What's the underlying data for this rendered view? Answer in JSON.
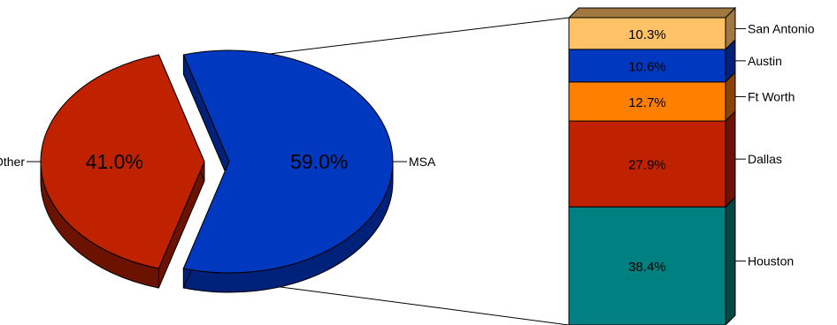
{
  "chart_data": {
    "type": "bar-of-pie",
    "title": "",
    "pie": {
      "slices": [
        {
          "name": "Other",
          "value": 41.0,
          "label": "41.0%",
          "color": "#C02200",
          "side_color": "#6B1300"
        },
        {
          "name": "MSA",
          "value": 59.0,
          "label": "59.0%",
          "color": "#0039C0",
          "side_color": "#00217A"
        }
      ]
    },
    "bar": {
      "parent": "MSA",
      "segments": [
        {
          "name": "Houston",
          "value": 38.4,
          "label": "38.4%",
          "color": "#008080",
          "side_color": "#004848"
        },
        {
          "name": "Dallas",
          "value": 27.9,
          "label": "27.9%",
          "color": "#C02200",
          "side_color": "#6B1300"
        },
        {
          "name": "Ft Worth",
          "value": 12.7,
          "label": "12.7%",
          "color": "#FF8000",
          "side_color": "#8A4400"
        },
        {
          "name": "Austin",
          "value": 10.6,
          "label": "10.6%",
          "color": "#0039C0",
          "side_color": "#00217A"
        },
        {
          "name": "San Antonio",
          "value": 10.3,
          "label": "10.3%",
          "color": "#FFC266",
          "side_color": "#A07840"
        }
      ]
    }
  }
}
